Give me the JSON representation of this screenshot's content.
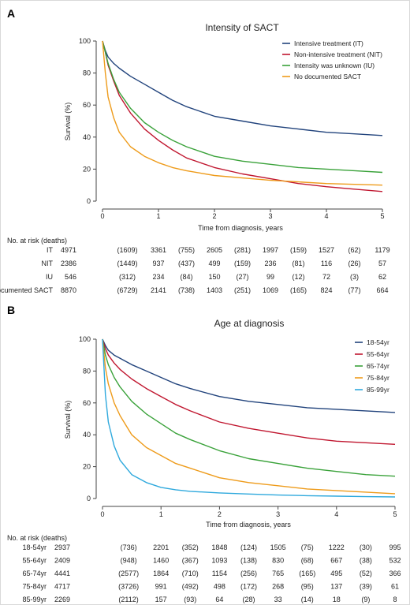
{
  "colors": {
    "navy": "#21437c",
    "red": "#c0162f",
    "green": "#3aa23a",
    "orange": "#ee9b1a",
    "cyan": "#2fa9dd",
    "axis": "#444444"
  },
  "panels": [
    {
      "letter": "A",
      "title": "Intensity of SACT",
      "xlabel": "Time from diagnosis, years",
      "ylabel": "Survival (%)",
      "risk_header": "No. at risk (deaths)"
    },
    {
      "letter": "B",
      "title": "Age at diagnosis",
      "xlabel": "Time from diagnosis, years",
      "ylabel": "Survival (%)",
      "risk_header": "No. at risk (deaths)"
    }
  ],
  "chart_data": [
    {
      "type": "line",
      "title": "Intensity of SACT",
      "xlabel": "Time from diagnosis, years",
      "ylabel": "Survival (%)",
      "xlim": [
        0,
        5
      ],
      "ylim": [
        0,
        100
      ],
      "xticks": [
        0,
        1,
        2,
        3,
        4,
        5
      ],
      "yticks": [
        0,
        20,
        40,
        60,
        80,
        100
      ],
      "legend_position": "top-right",
      "grid": false,
      "x": [
        0,
        0.05,
        0.1,
        0.2,
        0.3,
        0.5,
        0.75,
        1,
        1.25,
        1.5,
        2,
        2.5,
        3,
        3.5,
        4,
        4.5,
        5
      ],
      "series": [
        {
          "name": "Intensive treatment (IT)",
          "color": "#21437c",
          "values": [
            100,
            94,
            90,
            86,
            83,
            78,
            73,
            68,
            63,
            59,
            53,
            50,
            47,
            45,
            43,
            42,
            41
          ]
        },
        {
          "name": "Non-intensive treatment (NIT)",
          "color": "#c0162f",
          "values": [
            100,
            93,
            85,
            75,
            66,
            55,
            45,
            38,
            32,
            27,
            21,
            17,
            14,
            11,
            9,
            7.5,
            6
          ]
        },
        {
          "name": "Intensity was unknown (IU)",
          "color": "#3aa23a",
          "values": [
            100,
            93,
            86,
            76,
            68,
            58,
            49,
            43,
            38,
            34,
            28,
            25,
            23,
            21,
            20,
            19,
            18
          ]
        },
        {
          "name": "No documented SACT",
          "color": "#ee9b1a",
          "values": [
            100,
            80,
            65,
            52,
            43,
            34,
            28,
            24,
            21,
            19,
            16,
            14.5,
            13,
            12,
            11,
            10.5,
            10
          ]
        }
      ],
      "risk_table": {
        "times": [
          0,
          1,
          2,
          3,
          4,
          5
        ],
        "rows": [
          {
            "label": "IT",
            "n": [
              4971,
              3361,
              2605,
              1997,
              1527,
              1179
            ],
            "deaths": [
              "(1609)",
              "(755)",
              "(281)",
              "(159)",
              "(62)"
            ]
          },
          {
            "label": "NIT",
            "n": [
              2386,
              937,
              499,
              236,
              116,
              57
            ],
            "deaths": [
              "(1449)",
              "(437)",
              "(159)",
              "(81)",
              "(26)"
            ]
          },
          {
            "label": "IU",
            "n": [
              546,
              234,
              150,
              99,
              72,
              62
            ],
            "deaths": [
              "(312)",
              "(84)",
              "(27)",
              "(12)",
              "(3)"
            ]
          },
          {
            "label": "No documented SACT",
            "n": [
              8870,
              2141,
              1403,
              1069,
              824,
              664
            ],
            "deaths": [
              "(6729)",
              "(738)",
              "(251)",
              "(165)",
              "(77)"
            ]
          }
        ]
      }
    },
    {
      "type": "line",
      "title": "Age at diagnosis",
      "xlabel": "Time from diagnosis, years",
      "ylabel": "Survival (%)",
      "xlim": [
        0,
        5
      ],
      "ylim": [
        0,
        100
      ],
      "xticks": [
        0,
        1,
        2,
        3,
        4,
        5
      ],
      "yticks": [
        0,
        20,
        40,
        60,
        80,
        100
      ],
      "legend_position": "top-right",
      "grid": false,
      "x": [
        0,
        0.05,
        0.1,
        0.2,
        0.3,
        0.5,
        0.75,
        1,
        1.25,
        1.5,
        2,
        2.5,
        3,
        3.5,
        4,
        4.5,
        5
      ],
      "series": [
        {
          "name": "18-54yr",
          "color": "#21437c",
          "values": [
            100,
            96,
            93,
            90,
            88,
            84,
            80,
            76,
            72,
            69,
            64,
            61,
            59,
            57,
            56,
            55,
            54
          ]
        },
        {
          "name": "55-64yr",
          "color": "#c0162f",
          "values": [
            100,
            94,
            90,
            85,
            81,
            75,
            69,
            64,
            59,
            55,
            48,
            44,
            41,
            38,
            36,
            35,
            34
          ]
        },
        {
          "name": "65-74yr",
          "color": "#3aa23a",
          "values": [
            100,
            90,
            84,
            76,
            70,
            61,
            53,
            47,
            41,
            37,
            30,
            25,
            22,
            19,
            17,
            15,
            14
          ]
        },
        {
          "name": "75-84yr",
          "color": "#ee9b1a",
          "values": [
            100,
            82,
            72,
            60,
            52,
            40,
            32,
            27,
            22,
            19,
            13,
            10,
            8,
            6,
            5,
            4,
            3
          ]
        },
        {
          "name": "85-99yr",
          "color": "#2fa9dd",
          "values": [
            100,
            65,
            48,
            33,
            24,
            15,
            10,
            7,
            5.5,
            4.5,
            3.5,
            2.8,
            2.2,
            1.8,
            1.5,
            1.2,
            1
          ]
        }
      ],
      "risk_table": {
        "times": [
          0,
          1,
          2,
          3,
          4,
          5
        ],
        "rows": [
          {
            "label": "18-54yr",
            "n": [
              2937,
              2201,
              1848,
              1505,
              1222,
              995
            ],
            "deaths": [
              "(736)",
              "(352)",
              "(124)",
              "(75)",
              "(30)"
            ]
          },
          {
            "label": "55-64yr",
            "n": [
              2409,
              1460,
              1093,
              830,
              667,
              532
            ],
            "deaths": [
              "(948)",
              "(367)",
              "(138)",
              "(68)",
              "(38)"
            ]
          },
          {
            "label": "65-74yr",
            "n": [
              4441,
              1864,
              1154,
              765,
              495,
              366
            ],
            "deaths": [
              "(2577)",
              "(710)",
              "(256)",
              "(165)",
              "(52)"
            ]
          },
          {
            "label": "75-84yr",
            "n": [
              4717,
              991,
              498,
              268,
              137,
              61
            ],
            "deaths": [
              "(3726)",
              "(492)",
              "(172)",
              "(95)",
              "(39)"
            ]
          },
          {
            "label": "85-99yr",
            "n": [
              2269,
              157,
              64,
              33,
              18,
              8
            ],
            "deaths": [
              "(2112)",
              "(93)",
              "(28)",
              "(14)",
              "(9)"
            ]
          }
        ]
      }
    }
  ]
}
